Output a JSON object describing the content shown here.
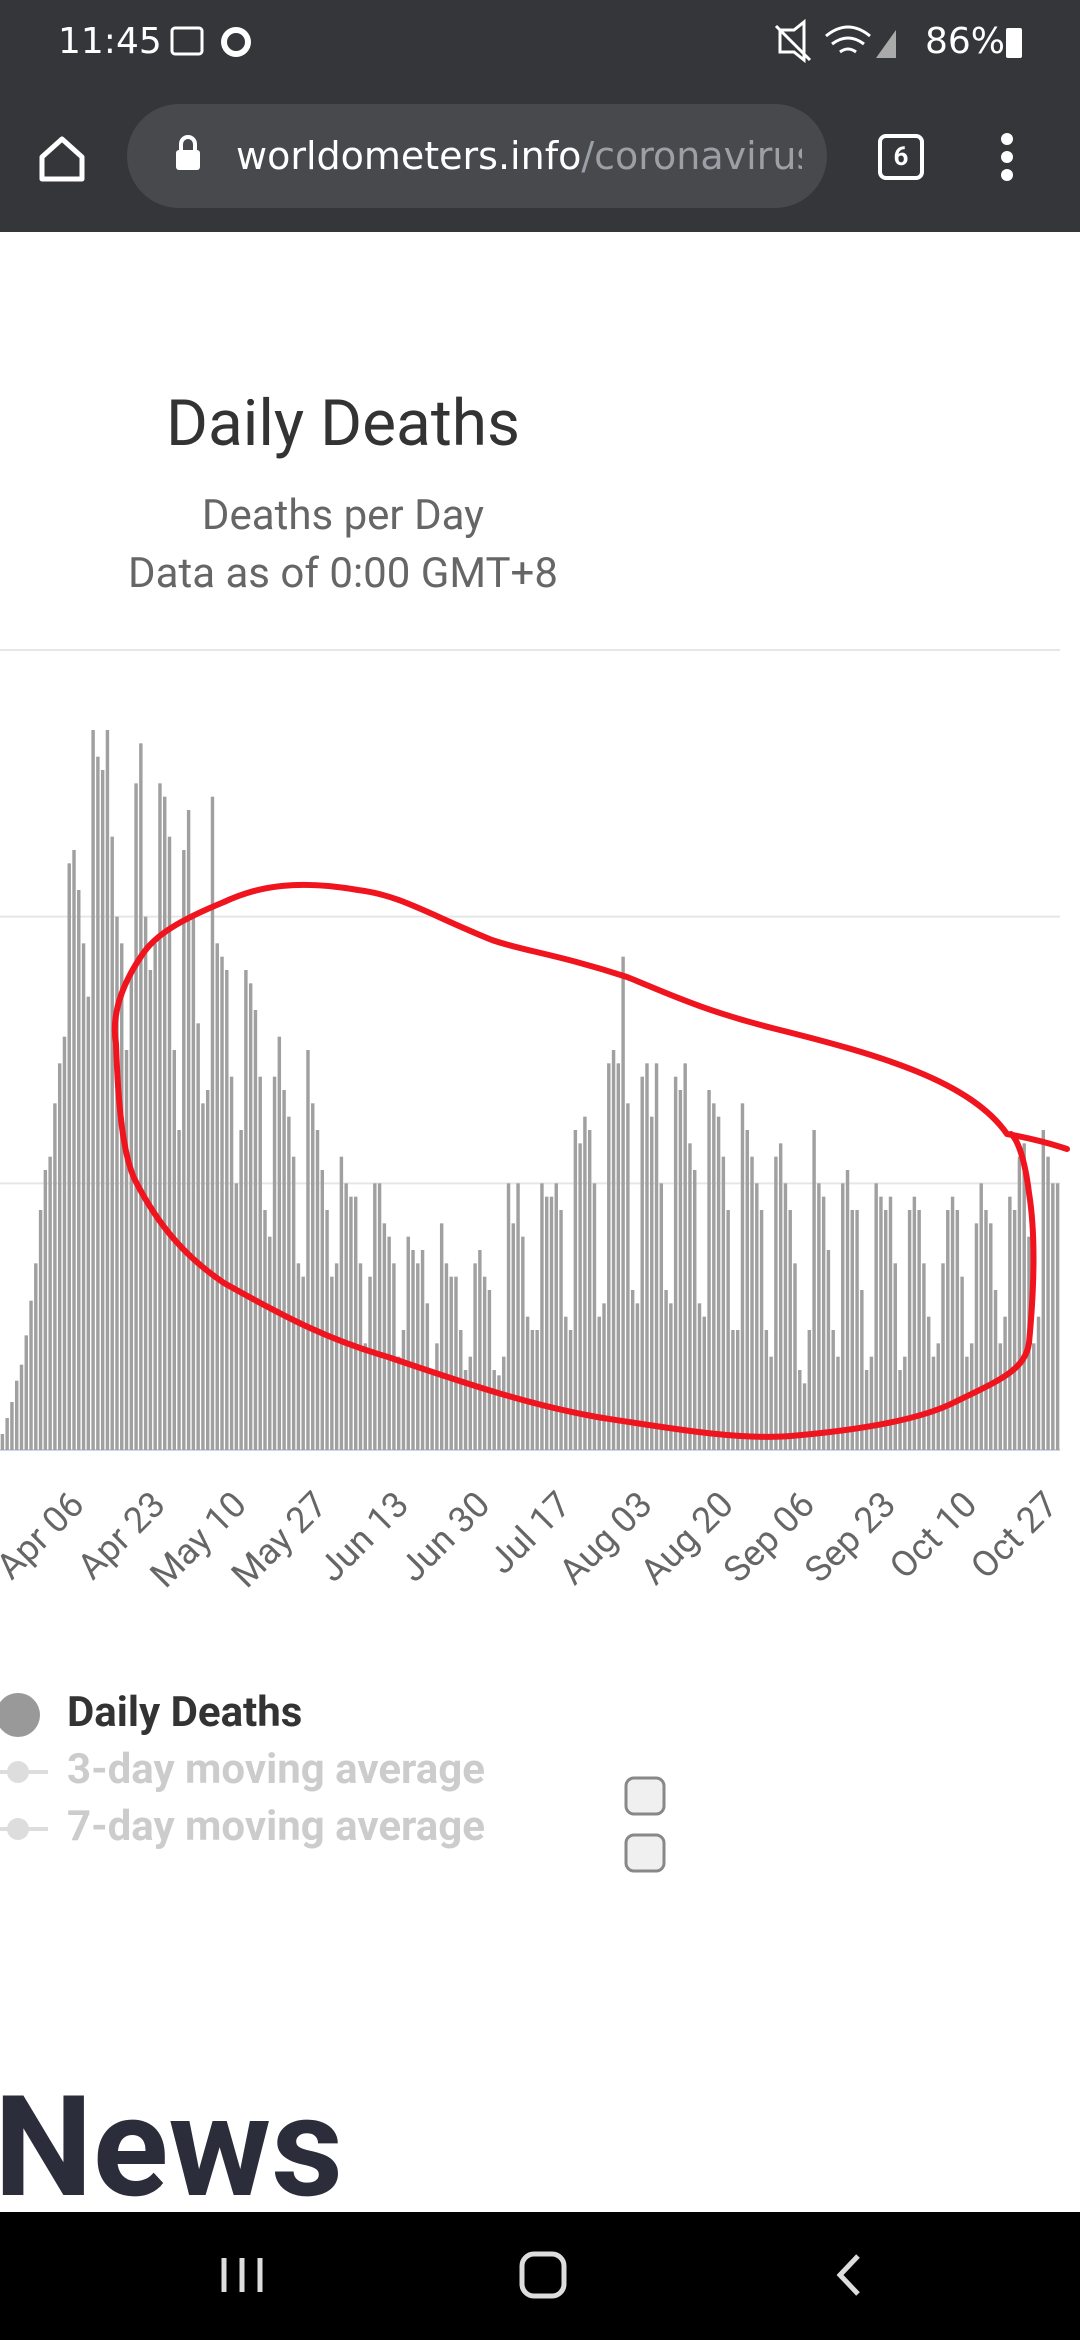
{
  "status_bar": {
    "time": "11:45",
    "battery": "86%"
  },
  "browser": {
    "url_host": "worldometers.info",
    "url_path": "/coronavirus",
    "tab_count": "6"
  },
  "chart_data": {
    "type": "bar",
    "title": "Daily Deaths",
    "subtitle": "Deaths per Day",
    "note": "Data as of 0:00 GMT+8",
    "categories": [
      null,
      null,
      null,
      null,
      null,
      null,
      null,
      null,
      null,
      null,
      null,
      null,
      null,
      null,
      "Apr 06",
      null,
      null,
      null,
      null,
      null,
      null,
      null,
      null,
      null,
      null,
      null,
      null,
      null,
      null,
      null,
      null,
      "Apr 23",
      null,
      null,
      null,
      null,
      null,
      null,
      null,
      null,
      null,
      null,
      null,
      null,
      null,
      null,
      null,
      null,
      "May 10",
      null,
      null,
      null,
      null,
      null,
      null,
      null,
      null,
      null,
      null,
      null,
      null,
      null,
      null,
      null,
      null,
      "May 27",
      null,
      null,
      null,
      null,
      null,
      null,
      null,
      null,
      null,
      null,
      null,
      null,
      null,
      null,
      null,
      null,
      "Jun 13",
      null,
      null,
      null,
      null,
      null,
      null,
      null,
      null,
      null,
      null,
      null,
      null,
      null,
      null,
      null,
      null,
      "Jun 30",
      null,
      null,
      null,
      null,
      null,
      null,
      null,
      null,
      null,
      null,
      null,
      null,
      null,
      null,
      null,
      null,
      "Jul 17",
      null,
      null,
      null,
      null,
      null,
      null,
      null,
      null,
      null,
      null,
      null,
      null,
      null,
      null,
      null,
      null,
      "Aug 03",
      null,
      null,
      null,
      null,
      null,
      null,
      null,
      null,
      null,
      null,
      null,
      null,
      null,
      null,
      null,
      null,
      "Aug 20",
      null,
      null,
      null,
      null,
      null,
      null,
      null,
      null,
      null,
      null,
      null,
      null,
      null,
      null,
      null,
      null,
      "Sep 06",
      null,
      null,
      null,
      null,
      null,
      null,
      null,
      null,
      null,
      null,
      null,
      null,
      null,
      null,
      null,
      null,
      "Sep 23",
      null,
      null,
      null,
      null,
      null,
      null,
      null,
      null,
      null,
      null,
      null,
      null,
      null,
      null,
      null,
      null,
      "Oct 10",
      null,
      null,
      null,
      null,
      null,
      null,
      null,
      null,
      null,
      null,
      null,
      null,
      null,
      null,
      null,
      null,
      "Oct 27",
      null,
      null,
      null
    ],
    "values": [
      60,
      120,
      180,
      260,
      320,
      430,
      560,
      700,
      900,
      1050,
      1100,
      1300,
      1450,
      1550,
      2200,
      2250,
      2100,
      1900,
      1700,
      2700,
      2600,
      2550,
      2700,
      2300,
      2000,
      1900,
      1500,
      1800,
      2500,
      2650,
      2000,
      1800,
      1900,
      2500,
      2450,
      2300,
      1500,
      1200,
      2250,
      2400,
      2000,
      1600,
      1300,
      1350,
      2450,
      1900,
      1850,
      1800,
      1400,
      1000,
      1200,
      1800,
      1750,
      1650,
      1400,
      900,
      800,
      1400,
      1550,
      1350,
      1250,
      1100,
      700,
      650,
      1500,
      1300,
      1200,
      1050,
      900,
      650,
      700,
      1100,
      1000,
      950,
      950,
      700,
      400,
      650,
      1000,
      1000,
      850,
      800,
      700,
      350,
      450,
      800,
      750,
      700,
      750,
      550,
      300,
      400,
      850,
      700,
      650,
      650,
      450,
      300,
      350,
      700,
      750,
      650,
      600,
      300,
      280,
      350,
      1000,
      850,
      1000,
      800,
      500,
      450,
      450,
      1000,
      950,
      950,
      1000,
      900,
      500,
      450,
      1200,
      1150,
      1250,
      1200,
      1000,
      500,
      550,
      1450,
      1500,
      1450,
      1850,
      1300,
      600,
      550,
      1400,
      1450,
      1250,
      1450,
      1000,
      600,
      550,
      1400,
      1350,
      1450,
      1150,
      1050,
      550,
      500,
      1350,
      1300,
      1250,
      1100,
      900,
      450,
      450,
      1300,
      1200,
      1100,
      1000,
      900,
      450,
      350,
      1100,
      1150,
      1000,
      900,
      700,
      300,
      250,
      450,
      1200,
      1000,
      950,
      750,
      450,
      350,
      1000,
      1050,
      900,
      900,
      600,
      300,
      350,
      1000,
      950,
      900,
      950,
      700,
      300,
      350,
      900,
      950,
      900,
      700,
      500,
      350,
      400,
      700,
      900,
      950,
      900,
      650,
      350,
      400,
      850,
      1000,
      900,
      850,
      600,
      400,
      500,
      950,
      900,
      1100,
      1150,
      800,
      400,
      500,
      1200,
      1100,
      1000,
      1000
    ],
    "color": "#a0a0a0",
    "ylim": [
      0,
      3000
    ],
    "yticks": [
      0,
      1000,
      2000,
      3000
    ],
    "grid": true,
    "legend": [
      {
        "name": "Daily Deaths",
        "visible": true
      },
      {
        "name": "3-day moving average",
        "visible": false
      },
      {
        "name": "7-day moving average",
        "visible": false
      }
    ]
  },
  "section_heading": "News"
}
